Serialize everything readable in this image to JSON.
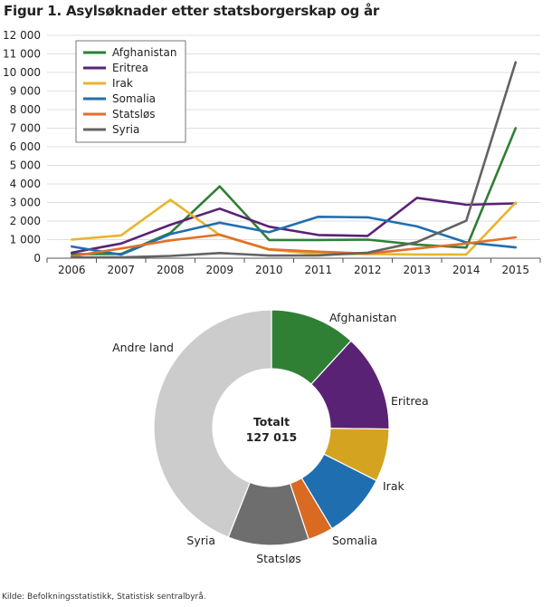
{
  "title": "Figur 1. Asylsøknader etter statsborgerskap og år",
  "source": "Kilde: Befolkningsstatistikk, Statistisk sentralbyrå.",
  "chart_data": [
    {
      "type": "line",
      "title": "Figur 1. Asylsøknader etter statsborgerskap og år",
      "xlabel": "",
      "ylabel": "",
      "x": [
        "2006",
        "2007",
        "2008",
        "2009",
        "2010",
        "2011",
        "2012",
        "2013",
        "2014",
        "2015"
      ],
      "ylim": [
        0,
        12000
      ],
      "yticks": [
        0,
        1000,
        2000,
        3000,
        4000,
        5000,
        6000,
        7000,
        8000,
        9000,
        10000,
        11000,
        12000
      ],
      "ytick_labels": [
        "0",
        "1 000",
        "2 000",
        "3 000",
        "4 000",
        "5 000",
        "6 000",
        "7 000",
        "8 000",
        "9 000",
        "10 000",
        "11 000",
        "12 000"
      ],
      "grid": "horizontal",
      "legend": "top-left",
      "series": [
        {
          "name": "Afghanistan",
          "color": "#2f7f35",
          "values": [
            220,
            230,
            1360,
            3870,
            980,
            980,
            1000,
            730,
            570,
            7000
          ]
        },
        {
          "name": "Eritrea",
          "color": "#5a2275",
          "values": [
            300,
            790,
            1800,
            2670,
            1700,
            1250,
            1200,
            3250,
            2880,
            2950
          ]
        },
        {
          "name": "Irak",
          "color": "#e7b52d",
          "values": [
            1000,
            1230,
            3140,
            1250,
            460,
            220,
            230,
            200,
            200,
            2990
          ]
        },
        {
          "name": "Somalia",
          "color": "#1f6fb0",
          "values": [
            630,
            190,
            1300,
            1910,
            1400,
            2230,
            2200,
            1710,
            850,
            580
          ]
        },
        {
          "name": "Statsløs",
          "color": "#e0712b",
          "values": [
            100,
            520,
            960,
            1270,
            480,
            350,
            250,
            520,
            790,
            1120
          ]
        },
        {
          "name": "Syria",
          "color": "#636363",
          "values": [
            40,
            50,
            120,
            280,
            140,
            150,
            300,
            870,
            2020,
            10550
          ]
        }
      ]
    },
    {
      "type": "pie",
      "variant": "donut",
      "center_label": [
        "Totalt",
        "127 015"
      ],
      "total": 127015,
      "labels": [
        "Afghanistan",
        "Eritrea",
        "Irak",
        "Somalia",
        "Statsløs",
        "Syria",
        "Andre land"
      ],
      "values": [
        15000,
        17000,
        9200,
        11400,
        4400,
        14100,
        55915
      ],
      "colors": [
        "#2f7f35",
        "#5a2275",
        "#d4a31f",
        "#1f6fb0",
        "#d96a22",
        "#6e6e6e",
        "#cccccc"
      ]
    }
  ]
}
